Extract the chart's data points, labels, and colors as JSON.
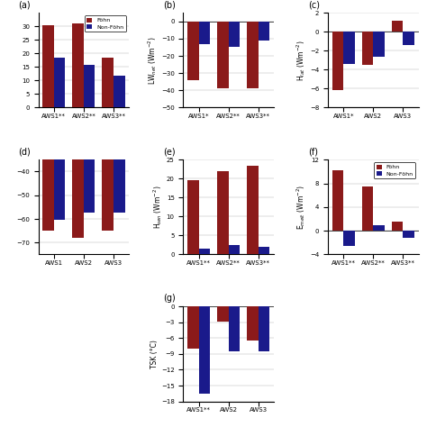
{
  "fohn_color": "#8B1A1A",
  "nonfohn_color": "#1A1A8B",
  "panel_a": {
    "label": "(a)",
    "ylabel": "",
    "categories": [
      "AWS1**",
      "AWS2**",
      "AWS3**"
    ],
    "fohn": [
      30.5,
      31.0,
      18.5
    ],
    "nonfohn": [
      18.5,
      15.8,
      11.8
    ],
    "ylim": [
      0,
      35
    ],
    "yticks": [
      0,
      5,
      10,
      15,
      20,
      25,
      30
    ],
    "show_legend": true,
    "legend_loc": "upper right"
  },
  "panel_b": {
    "label": "(b)",
    "ylabel": "LW$_{net}$ (Wm$^{-2}$)",
    "categories": [
      "AWS1*",
      "AWS2**",
      "AWS3**"
    ],
    "fohn": [
      -34.0,
      -39.0,
      -39.0
    ],
    "nonfohn": [
      -13.0,
      -14.5,
      -11.0
    ],
    "ylim": [
      -50,
      5
    ],
    "yticks": [
      -50,
      -40,
      -30,
      -20,
      -10,
      0
    ],
    "show_legend": false,
    "legend_loc": ""
  },
  "panel_c": {
    "label": "(c)",
    "ylabel": "H$_{lat}$ (Wm$^{-2}$)",
    "categories": [
      "AWS1*",
      "AWS2",
      "AWS3"
    ],
    "fohn": [
      -6.2,
      -3.5,
      1.2
    ],
    "nonfohn": [
      -3.4,
      -2.6,
      -1.4
    ],
    "ylim": [
      -8,
      2
    ],
    "yticks": [
      -8,
      -6,
      -4,
      -2,
      0,
      2
    ],
    "show_legend": false,
    "legend_loc": ""
  },
  "panel_d": {
    "label": "(d)",
    "ylabel": "",
    "categories": [
      "AWS1",
      "AWS2",
      "AWS3"
    ],
    "fohn": [
      -65.0,
      -68.0,
      -65.0
    ],
    "nonfohn": [
      -60.5,
      -57.5,
      -57.5
    ],
    "ylim": [
      -75,
      -35
    ],
    "yticks": [
      -70,
      -60,
      -50,
      -40
    ],
    "show_legend": false,
    "legend_loc": ""
  },
  "panel_e": {
    "label": "(e)",
    "ylabel": "H$_{sen}$ (Wm$^{-2}$)",
    "categories": [
      "AWS1**",
      "AWS2**",
      "AWS3**"
    ],
    "fohn": [
      19.5,
      22.0,
      23.5
    ],
    "nonfohn": [
      1.5,
      2.5,
      2.0
    ],
    "ylim": [
      0,
      25
    ],
    "yticks": [
      0,
      5,
      10,
      15,
      20,
      25
    ],
    "show_legend": false,
    "legend_loc": ""
  },
  "panel_f": {
    "label": "(f)",
    "ylabel": "E$_{melt}$ (Wm$^{-2}$)",
    "categories": [
      "AWS1**",
      "AWS2**",
      "AWS3**"
    ],
    "fohn": [
      10.2,
      7.5,
      1.5
    ],
    "nonfohn": [
      -2.5,
      1.0,
      -1.2
    ],
    "ylim": [
      -4,
      12
    ],
    "yticks": [
      -4,
      0,
      4,
      8,
      12
    ],
    "show_legend": true,
    "legend_loc": "upper right"
  },
  "panel_g": {
    "label": "(g)",
    "ylabel": "TSK (°C)",
    "categories": [
      "AWS1**",
      "AWS2",
      "AWS3"
    ],
    "fohn": [
      -8.0,
      -2.8,
      -6.5
    ],
    "nonfohn": [
      -16.5,
      -8.5,
      -8.5
    ],
    "ylim": [
      -18,
      0
    ],
    "yticks": [
      -18,
      -15,
      -12,
      -9,
      -6,
      -3,
      0
    ],
    "show_legend": false,
    "legend_loc": ""
  }
}
